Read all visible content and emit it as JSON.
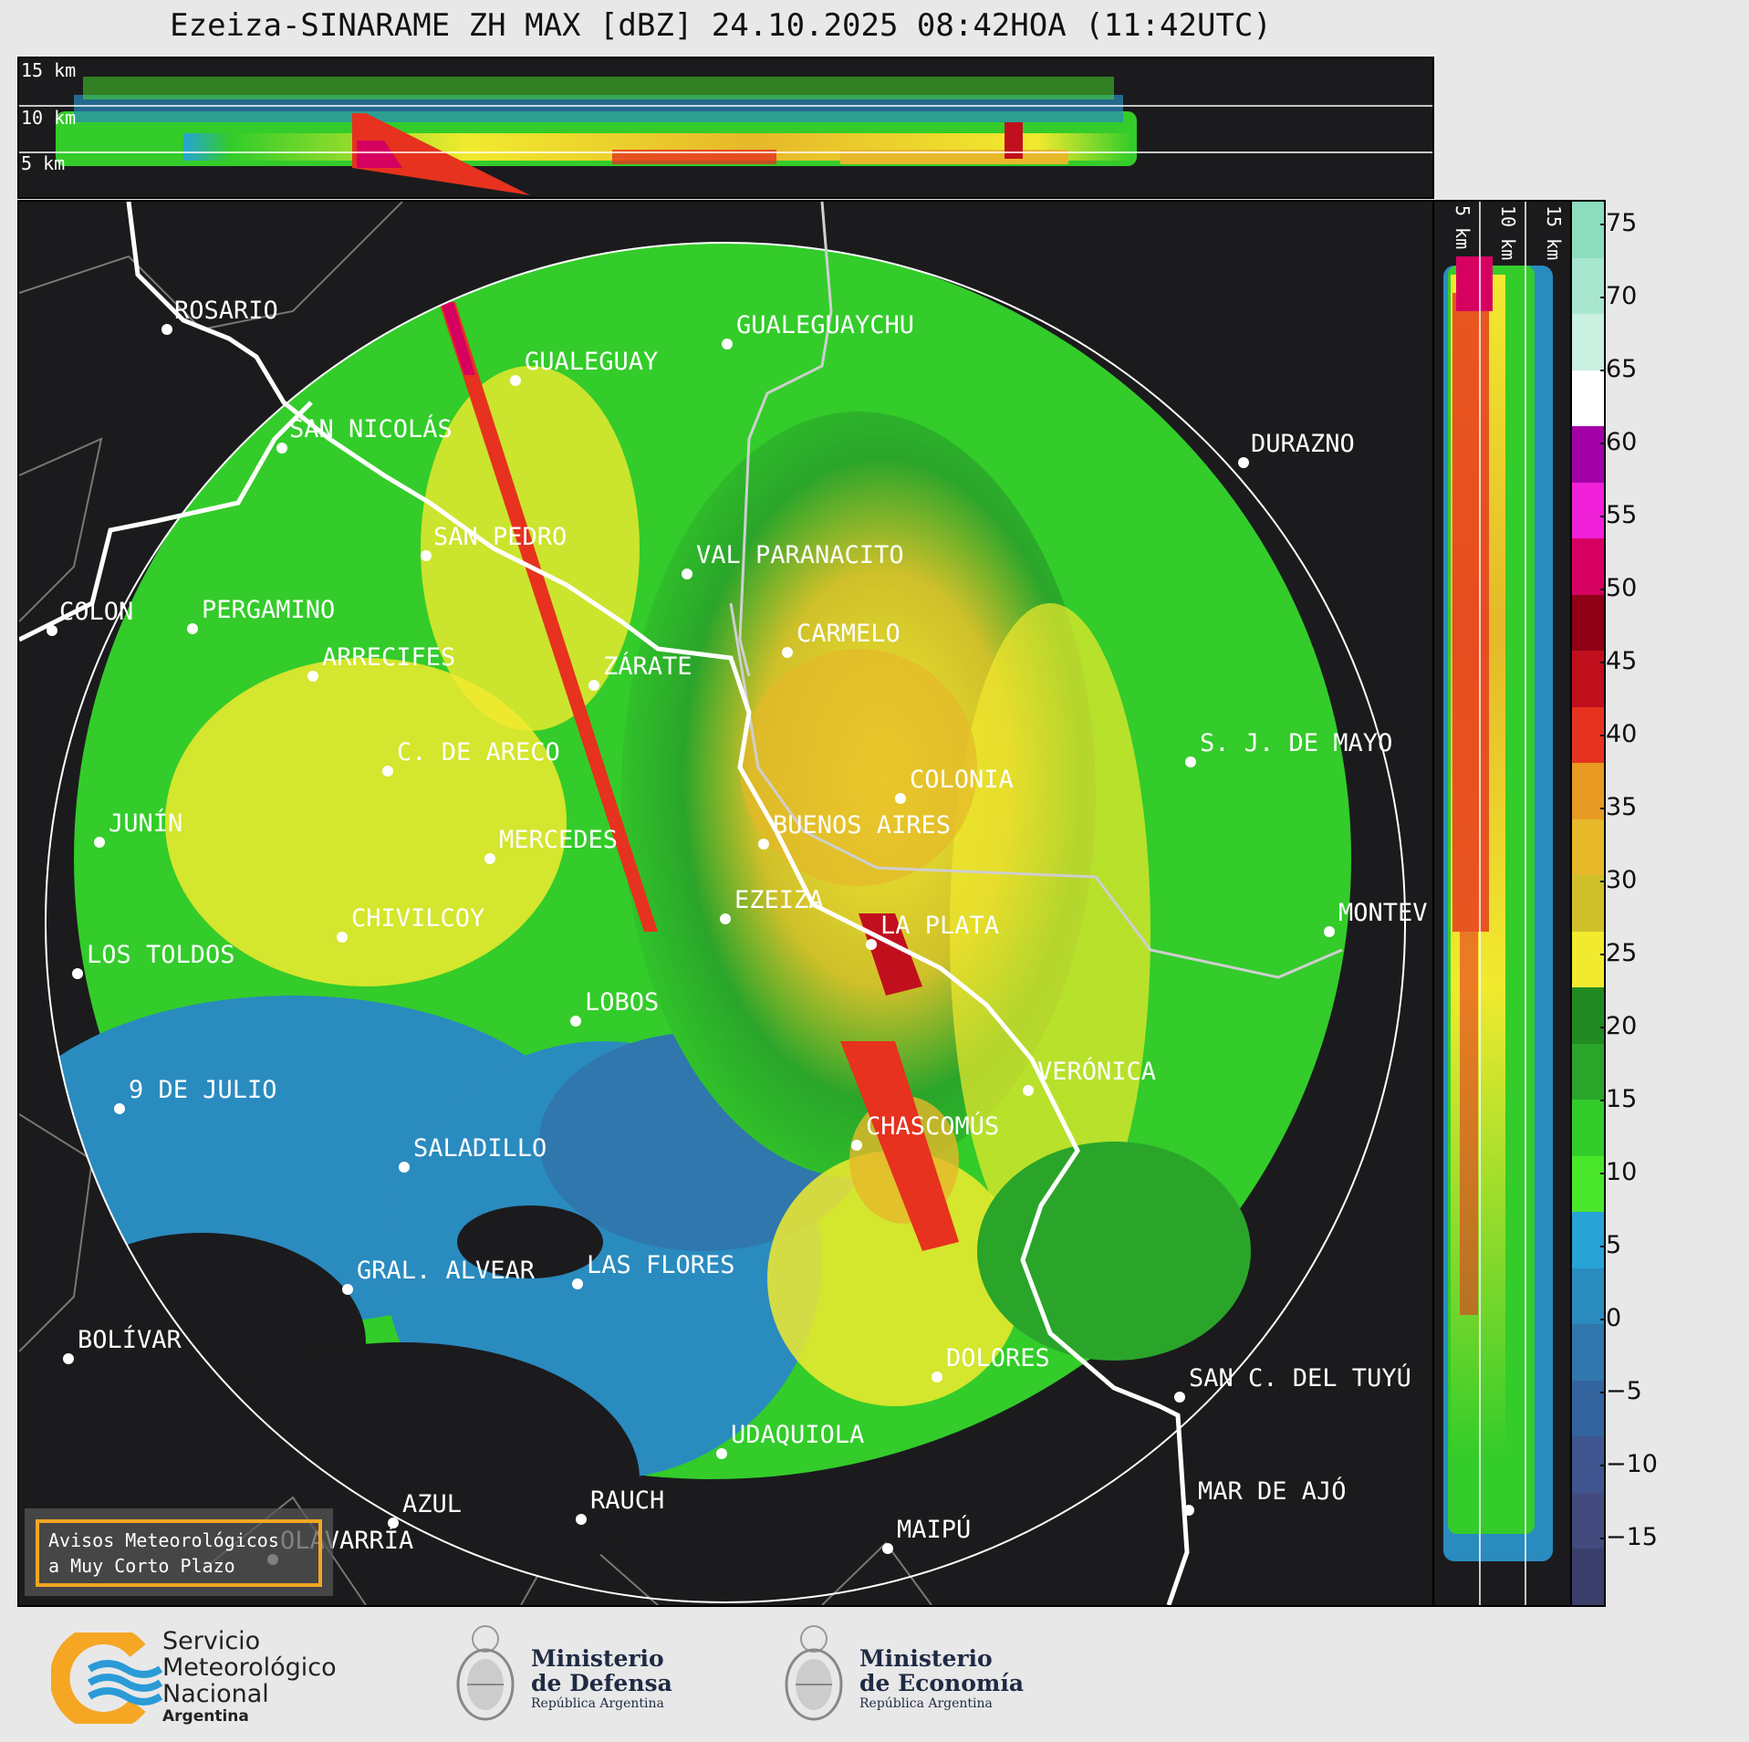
{
  "title": "Ezeiza-SINARAME ZH MAX [dBZ] 24.10.2025 08:42HOA (11:42UTC)",
  "top_panel": {
    "height_labels": [
      "15 km",
      "10 km",
      "5 km"
    ]
  },
  "side_panel": {
    "height_labels": [
      "5 km",
      "10 km",
      "15 km"
    ]
  },
  "colorbar": {
    "ticks": [
      "75",
      "70",
      "65",
      "60",
      "55",
      "50",
      "45",
      "40",
      "35",
      "30",
      "25",
      "20",
      "15",
      "10",
      "5",
      "0",
      "−5",
      "−10",
      "−15"
    ],
    "colors": [
      "#3b3f6b",
      "#434a7d",
      "#3e5590",
      "#33649e",
      "#2f77ad",
      "#2a8bbf",
      "#27a3d6",
      "#4ae62a",
      "#33cc2a",
      "#2aa52a",
      "#228a22",
      "#f1ea2e",
      "#cfc02a",
      "#e6b82a",
      "#e89a22",
      "#e6321e",
      "#c10f1e",
      "#8e0015",
      "#d60061",
      "#f020d8",
      "#a300a8",
      "#ffffff",
      "#c9f0e0",
      "#a9e6cf",
      "#8cdcbe"
    ]
  },
  "cities": [
    {
      "name": "ROSARIO"
    },
    {
      "name": "GUALEGUAYCHU"
    },
    {
      "name": "GUALEGUAY"
    },
    {
      "name": "SAN NICOLÁS"
    },
    {
      "name": "DURAZNO"
    },
    {
      "name": "SAN PEDRO"
    },
    {
      "name": "VAL PARANACITO"
    },
    {
      "name": "COLON"
    },
    {
      "name": "PERGAMINO"
    },
    {
      "name": "CARMELO"
    },
    {
      "name": "ARRECIFES"
    },
    {
      "name": "ZÁRATE"
    },
    {
      "name": "S. J. DE MAYO"
    },
    {
      "name": "C. DE ARECO"
    },
    {
      "name": "COLONIA"
    },
    {
      "name": "JUNÍN"
    },
    {
      "name": "BUENOS AIRES"
    },
    {
      "name": "MERCEDES"
    },
    {
      "name": "EZEIZA"
    },
    {
      "name": "MONTEV"
    },
    {
      "name": "CHIVILCOY"
    },
    {
      "name": "LA PLATA"
    },
    {
      "name": "LOS TOLDOS"
    },
    {
      "name": "LOBOS"
    },
    {
      "name": "VERÓNICA"
    },
    {
      "name": "9 DE JULIO"
    },
    {
      "name": "CHASCOMÚS"
    },
    {
      "name": "SALADILLO"
    },
    {
      "name": "GRAL. ALVEAR"
    },
    {
      "name": "LAS FLORES"
    },
    {
      "name": "BOLÍVAR"
    },
    {
      "name": "DOLORES"
    },
    {
      "name": "SAN C. DEL TUYÚ"
    },
    {
      "name": "UDAQUIOLA"
    },
    {
      "name": "MAR DE AJÓ"
    },
    {
      "name": "AZUL"
    },
    {
      "name": "RAUCH"
    },
    {
      "name": "OLAVARRÍA"
    },
    {
      "name": "MAIPÚ"
    }
  ],
  "warning_box": {
    "line1": "Avisos Meteorológicos",
    "line2": "a Muy Corto Plazo"
  },
  "footer": {
    "smn": {
      "line1": "Servicio",
      "line2": "Meteorológico",
      "line3": "Nacional",
      "line4": "Argentina"
    },
    "defensa": {
      "line1": "Ministerio",
      "line2": "de Defensa",
      "line3": "República Argentina"
    },
    "economia": {
      "line1": "Ministerio",
      "line2": "de Economía",
      "line3": "República Argentina"
    }
  }
}
